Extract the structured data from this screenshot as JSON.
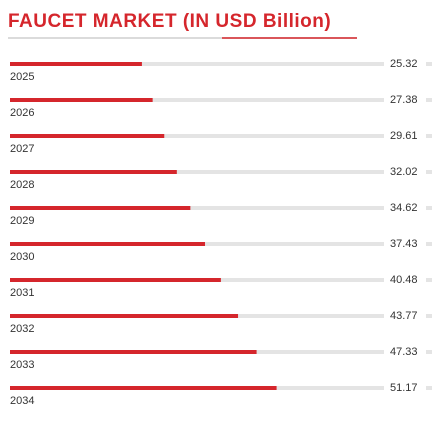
{
  "chart_data": {
    "type": "bar",
    "orientation": "horizontal",
    "title": "FAUCET MARKET (IN USD Billion)",
    "categories": [
      "2025",
      "2026",
      "2027",
      "2028",
      "2029",
      "2030",
      "2031",
      "2032",
      "2033",
      "2034"
    ],
    "values": [
      25.32,
      27.38,
      29.61,
      32.02,
      34.62,
      37.43,
      40.48,
      43.77,
      47.33,
      51.17
    ],
    "color": "#d5262c",
    "track_color": "#e4e4e4",
    "xlim": [
      0,
      81
    ]
  }
}
